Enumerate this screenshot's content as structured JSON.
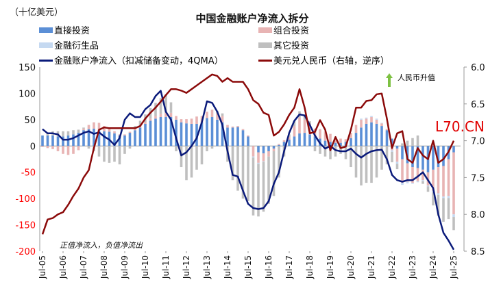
{
  "chart_data": {
    "type": "bar",
    "title": "中国金融账户净流入拆分",
    "ylabel": "（十亿美元）",
    "y2label": "美元兑人民币（右轴，逆序）",
    "ylim": [
      -200,
      150
    ],
    "y2lim": [
      6.0,
      8.5
    ],
    "y2_inverted": true,
    "yticks": [
      150,
      100,
      50,
      0,
      -50,
      -100,
      -150,
      -200
    ],
    "y2ticks": [
      "6.0",
      "6.5",
      "7.0",
      "7.5",
      "8.0",
      "8.5"
    ],
    "xtick_labels": [
      "Jul-05",
      "Jul-06",
      "Jul-07",
      "Jul-08",
      "Jul-09",
      "Jul-10",
      "Jul-11",
      "Jul-12",
      "Jul-13",
      "Jul-14",
      "Jul-15",
      "Jul-16",
      "Jul-17",
      "Jul-18",
      "Jul-19",
      "Jul-20",
      "Jul-21",
      "Jul-22",
      "Jul-23",
      "Jul-24",
      "Jul-25"
    ],
    "x_note": "quarterly, Q3 2005 to Q3 2025",
    "legend": "top",
    "series": [
      {
        "name": "直接投资",
        "kind": "bar",
        "color": "#5b8fd6",
        "values": [
          20,
          20,
          20,
          18,
          18,
          20,
          22,
          25,
          30,
          32,
          33,
          30,
          28,
          27,
          24,
          20,
          20,
          25,
          30,
          35,
          42,
          48,
          52,
          55,
          55,
          55,
          50,
          45,
          43,
          42,
          42,
          45,
          53,
          55,
          50,
          45,
          35,
          35,
          36,
          30,
          18,
          0,
          -12,
          -14,
          -10,
          -5,
          2,
          8,
          12,
          18,
          24,
          25,
          22,
          18,
          14,
          10,
          8,
          6,
          6,
          8,
          15,
          25,
          35,
          42,
          45,
          42,
          38,
          30,
          14,
          -5,
          -25,
          -33,
          -40,
          -42,
          -45,
          -50,
          -45,
          -40,
          -38,
          -25,
          -12
        ]
      },
      {
        "name": "组合投资",
        "kind": "bar",
        "color": "#e8b4b4",
        "values": [
          -2,
          -4,
          -6,
          -10,
          -15,
          -17,
          -15,
          -8,
          3,
          8,
          12,
          14,
          10,
          6,
          4,
          2,
          2,
          2,
          3,
          3,
          3,
          4,
          5,
          6,
          8,
          8,
          7,
          6,
          8,
          10,
          14,
          12,
          12,
          14,
          12,
          12,
          5,
          2,
          2,
          2,
          2,
          -20,
          -20,
          -15,
          -10,
          -5,
          2,
          3,
          5,
          20,
          30,
          25,
          20,
          15,
          18,
          18,
          15,
          10,
          8,
          5,
          10,
          15,
          15,
          10,
          10,
          8,
          5,
          2,
          -8,
          -25,
          -45,
          -35,
          -30,
          -25,
          -20,
          -25,
          -40,
          -50,
          -58,
          -70,
          -118
        ]
      },
      {
        "name": "金融衍生品",
        "kind": "bar",
        "color": "#c5d9f1",
        "values": [
          0,
          0,
          0,
          0,
          0,
          0,
          0,
          0,
          0,
          0,
          0,
          0,
          0,
          0,
          0,
          0,
          0,
          0,
          0,
          0,
          0,
          0,
          0,
          0,
          0,
          0,
          0,
          0,
          0,
          0,
          0,
          0,
          0,
          0,
          0,
          0,
          0,
          0,
          0,
          0,
          0,
          -2,
          -2,
          -1,
          0,
          0,
          0,
          0,
          0,
          0,
          0,
          0,
          0,
          0,
          0,
          0,
          0,
          0,
          0,
          0,
          0,
          0,
          2,
          2,
          2,
          2,
          1,
          0,
          -3,
          -4,
          -4,
          -3,
          -2,
          -2,
          -2,
          -2,
          -3,
          -3,
          -3,
          -4,
          -5
        ]
      },
      {
        "name": "其它投资",
        "kind": "bar",
        "color": "#bfbfbf",
        "values": [
          0,
          5,
          8,
          10,
          10,
          8,
          8,
          6,
          2,
          -5,
          -10,
          -20,
          -30,
          -32,
          -30,
          -35,
          -15,
          -5,
          5,
          10,
          15,
          20,
          25,
          30,
          35,
          20,
          -10,
          -40,
          -65,
          -60,
          -45,
          -35,
          -10,
          -5,
          5,
          5,
          -30,
          -65,
          -85,
          -100,
          -105,
          -110,
          -100,
          -95,
          -90,
          -85,
          -60,
          -20,
          5,
          10,
          12,
          10,
          5,
          -10,
          -15,
          -20,
          -25,
          -20,
          -15,
          -25,
          -40,
          -60,
          -75,
          -70,
          -70,
          -60,
          -45,
          -35,
          -20,
          -10,
          5,
          10,
          15,
          20,
          -5,
          -10,
          -25,
          -40,
          -45,
          -40,
          -25
        ]
      },
      {
        "name": "金融账户净流入（扣减储备变动，4QMA）",
        "kind": "line",
        "axis": "left",
        "color": "#0a1a7a",
        "values": [
          32,
          24,
          24,
          22,
          12,
          12,
          15,
          20,
          25,
          28,
          23,
          26,
          18,
          12,
          2,
          15,
          50,
          62,
          55,
          55,
          70,
          78,
          95,
          105,
          65,
          50,
          15,
          -18,
          -12,
          0,
          15,
          45,
          85,
          82,
          65,
          40,
          -10,
          -55,
          -58,
          -85,
          -110,
          -118,
          -120,
          -118,
          -105,
          -72,
          -50,
          -10,
          25,
          48,
          60,
          58,
          40,
          20,
          5,
          -5,
          0,
          -8,
          -10,
          -10,
          -5,
          -15,
          -22,
          -15,
          -10,
          -8,
          -7,
          -25,
          -55,
          -65,
          -68,
          -65,
          -65,
          -58,
          -50,
          -65,
          -80,
          -130,
          -165,
          -180,
          -197
        ]
      },
      {
        "name": "美元兑人民币（右轴，逆序）",
        "kind": "line",
        "axis": "right",
        "color": "#8b0a0a",
        "values": [
          8.27,
          8.07,
          8.05,
          8.0,
          7.97,
          7.87,
          7.75,
          7.65,
          7.5,
          7.4,
          7.1,
          6.85,
          6.82,
          6.83,
          6.83,
          6.83,
          6.83,
          6.83,
          6.83,
          6.8,
          6.7,
          6.62,
          6.55,
          6.47,
          6.38,
          6.3,
          6.3,
          6.32,
          6.35,
          6.3,
          6.25,
          6.2,
          6.15,
          6.1,
          6.12,
          6.2,
          6.15,
          6.2,
          6.2,
          6.2,
          6.3,
          6.45,
          6.5,
          6.62,
          6.65,
          6.93,
          6.88,
          6.78,
          6.65,
          6.55,
          6.3,
          6.55,
          6.9,
          6.88,
          6.72,
          6.85,
          7.13,
          6.95,
          7.1,
          7.08,
          6.85,
          6.55,
          6.55,
          6.46,
          6.45,
          6.37,
          6.36,
          6.7,
          7.1,
          6.9,
          6.87,
          7.25,
          7.3,
          7.1,
          7.2,
          7.25,
          7.0,
          7.3,
          7.25,
          7.15,
          7.0
        ]
      }
    ],
    "annotations": {
      "note": "正值净流入，负值净流出",
      "arrow_label": "人民币升值",
      "watermark": "L70.CN"
    },
    "colors": {
      "negative_tick": "#ff0000",
      "arrow": "#7dc142",
      "watermark": "#e00000"
    }
  }
}
